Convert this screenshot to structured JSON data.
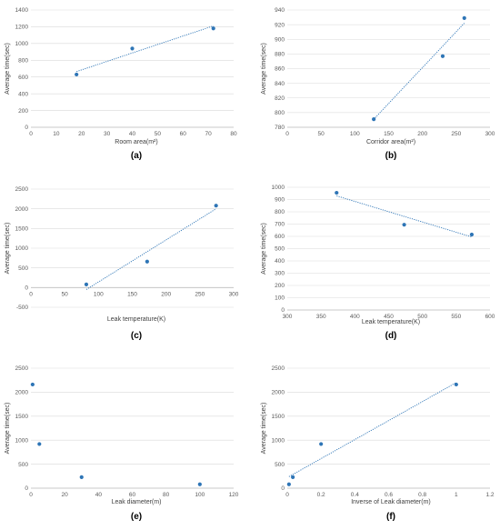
{
  "chart_data": [
    {
      "type": "scatter",
      "panel_label": "(a)",
      "xlabel": "Room area(m²)",
      "ylabel": "Average time(sec)",
      "xlim": [
        0,
        80
      ],
      "ylim": [
        0,
        1400
      ],
      "x_ticks": [
        0,
        10,
        20,
        30,
        40,
        50,
        60,
        70,
        80
      ],
      "y_ticks": [
        0,
        200,
        400,
        600,
        800,
        1000,
        1200,
        1400
      ],
      "series": [
        {
          "x": [
            18,
            40,
            72
          ],
          "y": [
            630,
            940,
            1180
          ]
        }
      ],
      "trendline": {
        "type": "linear",
        "x": [
          18,
          72
        ],
        "y": [
          665,
          1210
        ]
      },
      "grid": true
    },
    {
      "type": "scatter",
      "panel_label": "(b)",
      "xlabel": "Corridor area(m²)",
      "ylabel": "Average time(sec)",
      "xlim": [
        0,
        300
      ],
      "ylim": [
        780,
        940
      ],
      "x_ticks": [
        0,
        50,
        100,
        150,
        200,
        250,
        300
      ],
      "y_ticks": [
        780,
        800,
        820,
        840,
        860,
        880,
        900,
        920,
        940
      ],
      "series": [
        {
          "x": [
            128,
            230,
            262
          ],
          "y": [
            791,
            877,
            929
          ]
        }
      ],
      "trendline": {
        "type": "linear",
        "x": [
          128,
          262
        ],
        "y": [
          791,
          922
        ]
      },
      "grid": true
    },
    {
      "type": "scatter",
      "panel_label": "(c)",
      "xlabel": "Leak temperature(K)",
      "ylabel": "Average time(sec)",
      "xlim": [
        0,
        300
      ],
      "ylim": [
        -500,
        2500
      ],
      "x_ticks": [
        0,
        50,
        100,
        150,
        200,
        250,
        300
      ],
      "y_ticks": [
        -500,
        0,
        500,
        1000,
        1500,
        2000,
        2500
      ],
      "series": [
        {
          "x": [
            82,
            172,
            274
          ],
          "y": [
            80,
            660,
            2080
          ]
        }
      ],
      "trendline": {
        "type": "linear",
        "x": [
          82,
          274
        ],
        "y": [
          -50,
          2000
        ]
      },
      "grid": true
    },
    {
      "type": "scatter",
      "panel_label": "(d)",
      "xlabel": "Leak temperature(K)",
      "ylabel": "Average time(sec)",
      "xlim": [
        300,
        600
      ],
      "ylim": [
        0,
        1000
      ],
      "x_ticks": [
        300,
        350,
        400,
        450,
        500,
        550,
        600
      ],
      "y_ticks": [
        0,
        100,
        200,
        300,
        400,
        500,
        600,
        700,
        800,
        900,
        1000
      ],
      "series": [
        {
          "x": [
            373,
            473,
            573
          ],
          "y": [
            955,
            695,
            615
          ]
        }
      ],
      "trendline": {
        "type": "linear",
        "x": [
          373,
          573
        ],
        "y": [
          930,
          595
        ]
      },
      "grid": true
    },
    {
      "type": "scatter",
      "panel_label": "(e)",
      "xlabel": "Leak diameter(m)",
      "ylabel": "Average time(sec)",
      "xlim": [
        0,
        120
      ],
      "ylim": [
        0,
        2500
      ],
      "x_ticks": [
        0,
        20,
        40,
        60,
        80,
        100,
        120
      ],
      "y_ticks": [
        0,
        500,
        1000,
        1500,
        2000,
        2500
      ],
      "series": [
        {
          "x": [
            1,
            5,
            30,
            100
          ],
          "y": [
            2160,
            920,
            230,
            80
          ]
        }
      ],
      "grid": true
    },
    {
      "type": "scatter",
      "panel_label": "(f)",
      "xlabel": "Inverse of Leak diameter(m)",
      "ylabel": "Average time(sec)",
      "xlim": [
        0,
        1.2
      ],
      "ylim": [
        0,
        2500
      ],
      "x_ticks": [
        0,
        0.2,
        0.4,
        0.6,
        0.8,
        1,
        1.2
      ],
      "y_ticks": [
        0,
        500,
        1000,
        1500,
        2000,
        2500
      ],
      "series": [
        {
          "x": [
            0.01,
            0.033,
            0.2,
            1
          ],
          "y": [
            80,
            230,
            920,
            2160
          ]
        }
      ],
      "trendline": {
        "type": "linear",
        "x": [
          0.01,
          1
        ],
        "y": [
          240,
          2200
        ]
      },
      "grid": true
    }
  ],
  "colors": {
    "marker": "#2e75b6",
    "trendline": "#2e75b6",
    "gridline": "#d9d9d9",
    "axis": "#bfbfbf",
    "tick_text": "#595959",
    "label_text": "#404040"
  }
}
